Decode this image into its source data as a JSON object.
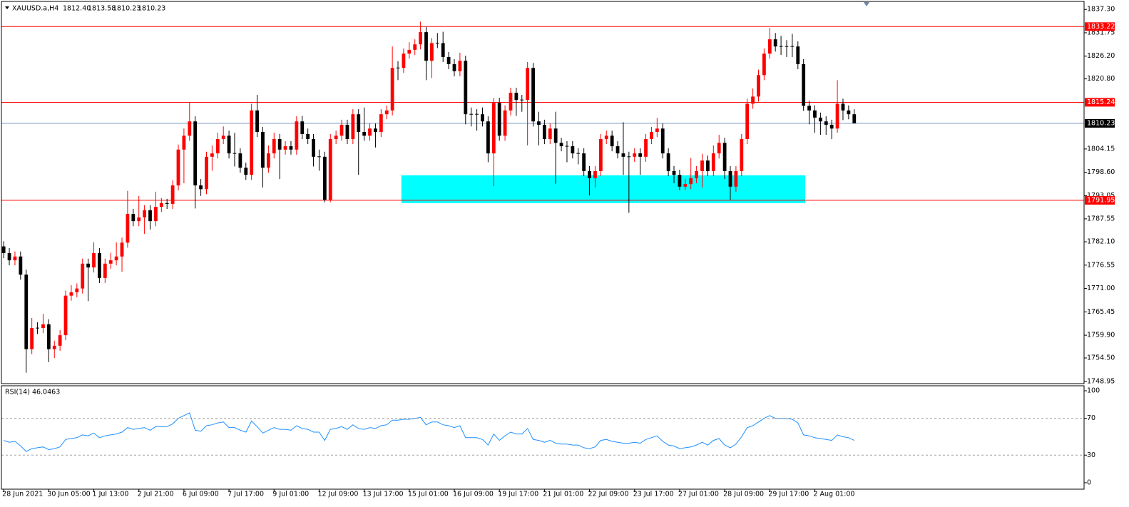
{
  "chart_data": {
    "type": "candlestick",
    "header": {
      "symbol": "XAUUSD.a,H4",
      "ohlc": [
        "1812.40",
        "1813.58",
        "1810.23",
        "1810.23"
      ]
    },
    "up_color": "#ff0000",
    "down_color": "#000000",
    "xlim": [
      -0.4,
      191.8
    ],
    "ylim": [
      1748.4,
      1839.2
    ],
    "yticks": [
      {
        "value": 1837.3,
        "label": "1837.30"
      },
      1831.75,
      {
        "value": 1826.2,
        "label": "1826.20"
      },
      {
        "value": 1820.8,
        "label": "1820.80"
      },
      1804.15,
      {
        "value": 1798.6,
        "label": "1798.60"
      },
      1793.05,
      1787.55,
      {
        "value": 1782.1,
        "label": "1782.10"
      },
      1776.55,
      {
        "value": 1771.0,
        "label": "1771.00"
      },
      1765.45,
      {
        "value": 1759.9,
        "label": "1759.90"
      },
      {
        "value": 1754.5,
        "label": "1754.50"
      },
      1748.95
    ],
    "xticks": [
      {
        "value": 0,
        "label": "28 Jun 2021"
      },
      {
        "value": 8,
        "label": "30 Jun 05:00"
      },
      {
        "value": 16,
        "label": "1 Jul 13:00"
      },
      {
        "value": 24,
        "label": "2 Jul 21:00"
      },
      {
        "value": 32,
        "label": "6 Jul 09:00"
      },
      {
        "value": 40,
        "label": "7 Jul 17:00"
      },
      {
        "value": 48,
        "label": "9 Jul 01:00"
      },
      {
        "value": 56,
        "label": "12 Jul 09:00"
      },
      {
        "value": 64,
        "label": "13 Jul 17:00"
      },
      {
        "value": 72,
        "label": "15 Jul 01:00"
      },
      {
        "value": 80,
        "label": "16 Jul 09:00"
      },
      {
        "value": 88,
        "label": "19 Jul 17:00"
      },
      {
        "value": 96,
        "label": "21 Jul 01:00"
      },
      {
        "value": 104,
        "label": "22 Jul 09:00"
      },
      {
        "value": 112,
        "label": "23 Jul 17:00"
      },
      {
        "value": 120,
        "label": "27 Jul 01:00"
      },
      {
        "value": 128,
        "label": "28 Jul 09:00"
      },
      {
        "value": 136,
        "label": "29 Jul 17:00"
      },
      {
        "value": 144,
        "label": "2 Aug 01:00"
      }
    ],
    "levels": [
      {
        "value": 1833.22,
        "color": "#ff0000",
        "box": "#ff0000"
      },
      {
        "value": 1815.24,
        "color": "#ff0000",
        "box": "#ff0000"
      },
      {
        "value": 1810.23,
        "color": "#7f9cc6",
        "box": "#000000"
      },
      {
        "value": 1791.95,
        "color": "#ff0000",
        "box": "#ff0000"
      }
    ],
    "zone": {
      "x": [
        70.6,
        142.3
      ],
      "y": [
        1791.3,
        1797.9
      ],
      "color": "#00ffff"
    },
    "open": [
      1781.0,
      1779.4,
      1777.7,
      1778.6,
      1774.3,
      1756.6,
      1761.6,
      1761.6,
      1762.5,
      1756.6,
      1757.4,
      1759.9,
      1769.3,
      1770.1,
      1771.0,
      1776.9,
      1776.0,
      1779.4,
      1773.5,
      1776.9,
      1777.7,
      1778.6,
      1781.9,
      1788.7,
      1787.0,
      1787.9,
      1789.6,
      1787.0,
      1790.4,
      1791.3,
      1791.1,
      1795.5,
      1804.0,
      1807.3,
      1810.7,
      1795.5,
      1794.6,
      1802.3,
      1803.1,
      1806.5,
      1807.3,
      1803.1,
      1803.1,
      1799.7,
      1798.0,
      1813.3,
      1808.2,
      1799.7,
      1803.1,
      1806.5,
      1804.0,
      1804.8,
      1804.0,
      1810.7,
      1807.7,
      1806.5,
      1802.3,
      1802.3,
      1792.1,
      1806.5,
      1807.3,
      1809.9,
      1806.5,
      1812.4,
      1808.2,
      1807.3,
      1809.0,
      1808.2,
      1812.4,
      1813.3,
      1823.4,
      1823.4,
      1826.8,
      1827.7,
      1829.0,
      1831.9,
      1825.1,
      1829.3,
      1829.3,
      1826.0,
      1824.3,
      1822.6,
      1825.1,
      1812.4,
      1812.4,
      1812.4,
      1810.7,
      1803.1,
      1815.1,
      1807.3,
      1813.3,
      1817.5,
      1815.8,
      1815.8,
      1823.4,
      1810.7,
      1809.9,
      1806.5,
      1809.0,
      1805.6,
      1804.8,
      1804.8,
      1803.1,
      1803.1,
      1798.9,
      1797.2,
      1798.9,
      1806.5,
      1807.3,
      1804.8,
      1803.1,
      1802.3,
      1802.3,
      1803.1,
      1802.3,
      1806.5,
      1808.2,
      1809.0,
      1803.1,
      1798.9,
      1798.0,
      1795.2,
      1795.8,
      1797.2,
      1798.9,
      1801.4,
      1798.9,
      1803.1,
      1805.6,
      1798.9,
      1795.2,
      1798.9,
      1806.5,
      1814.9,
      1816.6,
      1821.7,
      1826.8,
      1830.2,
      1828.5,
      1828.5,
      1828.5,
      1828.5,
      1824.3,
      1814.4,
      1813.3,
      1811.6,
      1810.7,
      1809.9,
      1809.0,
      1814.9,
      1813.3,
      1812.4
    ],
    "high": [
      1782.2,
      1780.6,
      1779.8,
      1779.8,
      1775.5,
      1764.0,
      1763.0,
      1765.0,
      1763.7,
      1758.6,
      1761.1,
      1770.5,
      1771.8,
      1772.2,
      1778.1,
      1778.1,
      1782.0,
      1780.6,
      1778.1,
      1779.5,
      1782.0,
      1783.1,
      1794.2,
      1789.9,
      1793.0,
      1790.8,
      1790.8,
      1794.0,
      1792.5,
      1792.3,
      1796.7,
      1805.2,
      1809.0,
      1815.2,
      1811.9,
      1797.0,
      1803.5,
      1805.0,
      1808.0,
      1809.5,
      1808.5,
      1808.0,
      1804.3,
      1800.9,
      1814.9,
      1817.0,
      1809.4,
      1805.0,
      1808.0,
      1807.7,
      1806.0,
      1806.0,
      1811.9,
      1812.0,
      1809.0,
      1807.7,
      1804.0,
      1803.5,
      1807.7,
      1808.5,
      1811.1,
      1811.1,
      1813.6,
      1813.6,
      1814.0,
      1810.2,
      1810.2,
      1813.6,
      1814.5,
      1828.5,
      1825.0,
      1828.0,
      1829.5,
      1830.2,
      1834.4,
      1833.1,
      1830.5,
      1831.7,
      1832.0,
      1827.2,
      1825.5,
      1827.0,
      1826.3,
      1814.0,
      1813.6,
      1814.0,
      1811.9,
      1816.3,
      1816.3,
      1814.5,
      1818.7,
      1818.7,
      1817.0,
      1824.8,
      1824.6,
      1813.0,
      1811.1,
      1810.2,
      1813.0,
      1806.8,
      1806.0,
      1806.0,
      1804.3,
      1804.3,
      1800.1,
      1800.1,
      1807.7,
      1808.5,
      1808.5,
      1806.0,
      1810.5,
      1803.5,
      1804.3,
      1804.3,
      1807.7,
      1809.4,
      1811.5,
      1810.2,
      1804.3,
      1800.1,
      1799.2,
      1797.0,
      1802.0,
      1800.1,
      1803.0,
      1802.6,
      1805.0,
      1807.5,
      1806.8,
      1800.1,
      1800.1,
      1807.7,
      1816.1,
      1818.5,
      1823.0,
      1828.0,
      1832.9,
      1831.7,
      1831.0,
      1830.0,
      1831.5,
      1829.7,
      1825.5,
      1815.6,
      1814.5,
      1812.8,
      1811.9,
      1811.1,
      1820.5,
      1816.1,
      1814.5,
      1813.58
    ],
    "low": [
      1778.2,
      1776.5,
      1776.5,
      1773.1,
      1751.0,
      1755.4,
      1760.2,
      1760.4,
      1753.5,
      1754.5,
      1756.2,
      1758.7,
      1768.1,
      1768.9,
      1769.8,
      1768.0,
      1774.8,
      1772.3,
      1772.3,
      1775.7,
      1776.5,
      1775.0,
      1780.7,
      1785.8,
      1785.8,
      1784.0,
      1785.0,
      1785.8,
      1789.2,
      1789.9,
      1789.9,
      1794.3,
      1796.0,
      1806.1,
      1790.0,
      1793.0,
      1793.4,
      1799.0,
      1801.9,
      1805.3,
      1801.9,
      1800.0,
      1798.5,
      1796.8,
      1796.8,
      1807.0,
      1795.0,
      1798.5,
      1801.9,
      1797.0,
      1802.8,
      1802.8,
      1802.8,
      1806.5,
      1805.3,
      1800.0,
      1799.0,
      1791.5,
      1791.5,
      1805.3,
      1806.1,
      1805.3,
      1805.3,
      1798.0,
      1806.1,
      1806.1,
      1804.5,
      1807.0,
      1811.2,
      1812.1,
      1820.5,
      1822.2,
      1825.6,
      1826.5,
      1827.8,
      1820.5,
      1821.0,
      1828.1,
      1824.8,
      1823.1,
      1821.4,
      1821.4,
      1810.0,
      1809.5,
      1808.5,
      1809.5,
      1801.0,
      1795.3,
      1806.1,
      1806.1,
      1812.1,
      1812.0,
      1813.0,
      1805.0,
      1809.5,
      1805.0,
      1805.3,
      1805.3,
      1795.9,
      1803.6,
      1801.0,
      1801.9,
      1800.5,
      1797.7,
      1793.1,
      1795.0,
      1797.7,
      1805.3,
      1803.6,
      1801.9,
      1798.0,
      1789.0,
      1801.1,
      1798.0,
      1801.1,
      1805.3,
      1807.0,
      1801.9,
      1797.7,
      1796.0,
      1794.4,
      1794.4,
      1794.6,
      1796.0,
      1795.0,
      1797.7,
      1797.7,
      1801.9,
      1797.0,
      1792.1,
      1794.0,
      1797.7,
      1805.3,
      1813.7,
      1815.4,
      1820.5,
      1825.6,
      1827.3,
      1826.5,
      1826.0,
      1826.0,
      1823.1,
      1813.2,
      1810.0,
      1808.0,
      1807.5,
      1807.5,
      1806.5,
      1808.0,
      1811.0,
      1811.2,
      1810.23
    ],
    "close": [
      1779.4,
      1777.7,
      1778.6,
      1774.3,
      1756.6,
      1761.6,
      1761.6,
      1762.5,
      1756.6,
      1757.4,
      1759.9,
      1769.3,
      1770.1,
      1771.0,
      1776.9,
      1776.0,
      1779.4,
      1773.5,
      1776.9,
      1777.7,
      1778.6,
      1781.9,
      1788.7,
      1787.0,
      1787.9,
      1789.6,
      1787.0,
      1790.4,
      1791.3,
      1791.1,
      1795.5,
      1804.0,
      1807.3,
      1810.7,
      1795.5,
      1794.6,
      1802.3,
      1803.1,
      1806.5,
      1807.3,
      1803.1,
      1803.1,
      1799.7,
      1798.0,
      1813.3,
      1808.2,
      1799.7,
      1803.1,
      1806.5,
      1804.0,
      1804.8,
      1804.0,
      1810.7,
      1807.7,
      1806.5,
      1802.3,
      1802.3,
      1792.1,
      1806.5,
      1807.3,
      1809.9,
      1806.5,
      1812.4,
      1808.2,
      1807.3,
      1809.0,
      1808.2,
      1812.4,
      1813.3,
      1823.4,
      1823.4,
      1826.8,
      1827.7,
      1829.0,
      1831.9,
      1825.1,
      1829.3,
      1829.3,
      1826.0,
      1824.3,
      1822.6,
      1825.1,
      1812.4,
      1812.4,
      1812.4,
      1810.7,
      1803.1,
      1815.1,
      1807.3,
      1813.3,
      1817.5,
      1815.8,
      1815.8,
      1823.4,
      1810.7,
      1809.9,
      1806.5,
      1809.0,
      1805.6,
      1804.8,
      1804.8,
      1803.1,
      1803.1,
      1798.9,
      1797.2,
      1798.9,
      1806.5,
      1807.3,
      1804.8,
      1803.1,
      1802.3,
      1802.3,
      1803.1,
      1802.3,
      1806.5,
      1808.2,
      1809.0,
      1803.1,
      1798.9,
      1798.0,
      1795.2,
      1795.8,
      1797.2,
      1798.9,
      1801.4,
      1798.9,
      1803.1,
      1805.6,
      1798.9,
      1795.2,
      1798.9,
      1806.5,
      1814.9,
      1816.6,
      1821.7,
      1826.8,
      1830.2,
      1828.5,
      1828.5,
      1828.5,
      1828.5,
      1824.3,
      1814.4,
      1813.3,
      1811.6,
      1810.7,
      1809.9,
      1809.0,
      1814.9,
      1813.3,
      1812.4,
      1810.23
    ],
    "rsi": {
      "label": "RSI(14) 46.0463",
      "color": "#1e90ff",
      "ylim": [
        -7,
        105.4
      ],
      "yticks": [
        100,
        70,
        30,
        0
      ],
      "levels": [
        70,
        30
      ],
      "values": [
        46,
        44,
        45,
        40,
        34,
        37,
        38,
        39,
        36,
        37,
        39,
        47,
        48,
        49,
        52,
        51,
        54,
        49,
        51,
        52,
        53,
        55,
        60,
        58,
        59,
        60,
        57,
        61,
        61,
        61,
        64,
        70,
        73,
        76,
        57,
        56,
        62,
        63,
        65,
        66,
        60,
        60,
        57,
        55,
        67,
        61,
        54,
        57,
        60,
        58,
        58,
        57,
        62,
        59,
        58,
        55,
        55,
        46,
        58,
        59,
        61,
        58,
        63,
        59,
        58,
        60,
        59,
        62,
        63,
        68,
        68,
        69,
        69,
        70,
        71,
        63,
        66,
        66,
        63,
        62,
        60,
        62,
        49,
        49,
        49,
        47,
        41,
        53,
        46,
        51,
        55,
        53,
        53,
        59,
        47,
        46,
        44,
        46,
        43,
        42,
        42,
        41,
        41,
        38,
        37,
        39,
        46,
        47,
        45,
        44,
        43,
        43,
        44,
        43,
        47,
        49,
        51,
        45,
        41,
        40,
        37,
        38,
        39,
        41,
        44,
        41,
        46,
        48,
        41,
        38,
        42,
        50,
        60,
        62,
        66,
        70,
        73,
        70,
        70,
        70,
        69,
        65,
        52,
        51,
        49,
        48,
        47,
        46,
        52,
        50,
        49,
        46.0463
      ]
    }
  }
}
